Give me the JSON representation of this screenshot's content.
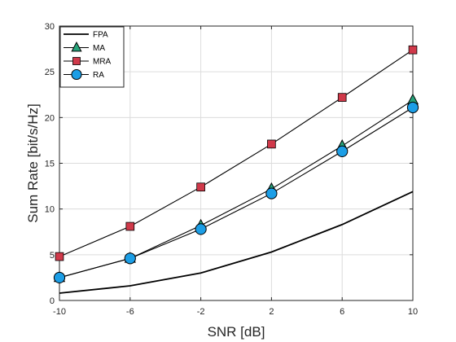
{
  "chart_data": {
    "type": "line",
    "title": "",
    "xlabel": "SNR [dB]",
    "ylabel": "Sum Rate [bit/s/Hz]",
    "x": [
      -10,
      -6,
      -2,
      2,
      6,
      10
    ],
    "x_ticks": [
      -10,
      -6,
      -2,
      2,
      6,
      10
    ],
    "y_ticks": [
      0,
      5,
      10,
      15,
      20,
      25,
      30
    ],
    "xlim": [
      -10,
      10
    ],
    "ylim": [
      0,
      30
    ],
    "grid": true,
    "legend_position": "top-left",
    "series": [
      {
        "name": "FPA",
        "marker": "none",
        "line_color": "#000000",
        "marker_color": "",
        "values": [
          0.8,
          1.6,
          3.0,
          5.3,
          8.3,
          11.9
        ]
      },
      {
        "name": "MA",
        "marker": "triangle",
        "line_color": "#000000",
        "marker_color": "#27a37a",
        "values": [
          2.5,
          4.6,
          8.2,
          12.2,
          16.9,
          21.9
        ]
      },
      {
        "name": "MRA",
        "marker": "square",
        "line_color": "#000000",
        "marker_color": "#d0394a",
        "values": [
          4.8,
          8.1,
          12.4,
          17.1,
          22.2,
          27.4
        ]
      },
      {
        "name": "RA",
        "marker": "circle",
        "line_color": "#000000",
        "marker_color": "#1c9ee6",
        "values": [
          2.5,
          4.6,
          7.8,
          11.7,
          16.3,
          21.1
        ]
      }
    ]
  }
}
